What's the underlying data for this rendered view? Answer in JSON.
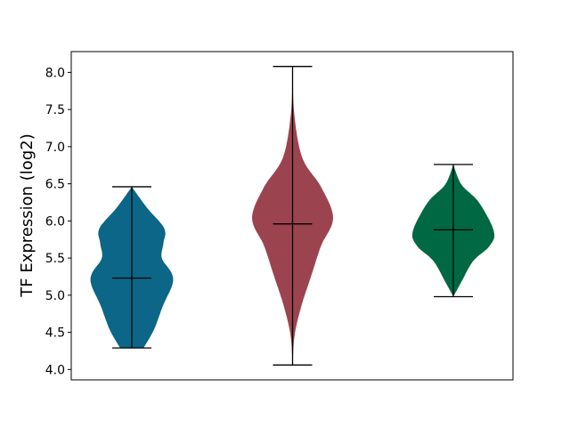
{
  "chart_data": {
    "type": "violin",
    "title": "",
    "xlabel": "",
    "ylabel": "TF Expression (log2)",
    "ylim": [
      3.86,
      8.28
    ],
    "yticks": [
      "4.0",
      "4.5",
      "5.0",
      "5.5",
      "6.0",
      "6.5",
      "7.0",
      "7.5",
      "8.0"
    ],
    "grid": false,
    "xticks_visible": false,
    "series": [
      {
        "color": "#0b6688",
        "min": 4.29,
        "max": 6.46,
        "median": 5.23,
        "density": [
          [
            4.29,
            0.29
          ],
          [
            4.54,
            0.55
          ],
          [
            4.86,
            0.77
          ],
          [
            5.14,
            1.0
          ],
          [
            5.3,
            0.98
          ],
          [
            5.5,
            0.74
          ],
          [
            5.7,
            0.78
          ],
          [
            5.9,
            0.8
          ],
          [
            6.18,
            0.37
          ],
          [
            6.46,
            0.0
          ]
        ]
      },
      {
        "color": "#9b4450",
        "min": 4.06,
        "max": 8.08,
        "median": 5.96,
        "density": [
          [
            4.06,
            0.0
          ],
          [
            4.46,
            0.05
          ],
          [
            4.86,
            0.22
          ],
          [
            5.26,
            0.46
          ],
          [
            5.66,
            0.7
          ],
          [
            6.04,
            1.0
          ],
          [
            6.46,
            0.7
          ],
          [
            6.85,
            0.24
          ],
          [
            7.45,
            0.04
          ],
          [
            8.08,
            0.0
          ]
        ]
      },
      {
        "color": "#006843",
        "min": 4.98,
        "max": 6.76,
        "median": 5.88,
        "density": [
          [
            4.98,
            0.0
          ],
          [
            5.18,
            0.2
          ],
          [
            5.46,
            0.49
          ],
          [
            5.66,
            0.89
          ],
          [
            5.86,
            1.0
          ],
          [
            6.25,
            0.63
          ],
          [
            6.49,
            0.2
          ],
          [
            6.76,
            0.0
          ]
        ]
      }
    ]
  }
}
